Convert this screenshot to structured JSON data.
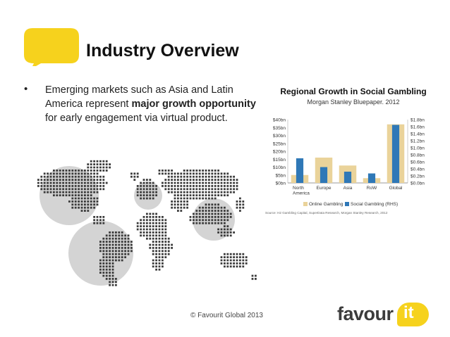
{
  "slide": {
    "title": "Industry Overview",
    "bullet_symbol": "•",
    "bullet_pre": "Emerging markets such as Asia and Latin America represent ",
    "bullet_bold": "major growth opportunity",
    "bullet_post": " for early engagement via virtual product.",
    "footer": "© Favourit Global 2013",
    "logo_word": "favour",
    "logo_it": "it"
  },
  "colors": {
    "accent_yellow": "#f6d21d",
    "online_gambling": "#ead39a",
    "social_gambling": "#2f78b7",
    "map_dots": "#3a3a3a",
    "map_circles": "#d4d4d4"
  },
  "chart_data": {
    "type": "bar",
    "title": "Regional Growth in Social Gambling",
    "subtitle": "Morgan Stanley Bluepaper. 2012",
    "categories": [
      "North America",
      "Europe",
      "Asia",
      "RoW",
      "Global"
    ],
    "category_labels": [
      [
        "North",
        "America"
      ],
      [
        "Europe"
      ],
      [
        "Asia"
      ],
      [
        "RoW"
      ],
      [
        "Global"
      ]
    ],
    "series": [
      {
        "name": "Online Gambling",
        "axis": "left",
        "values": [
          5,
          16,
          11,
          3,
          37
        ]
      },
      {
        "name": "Social Gambling (RHS)",
        "axis": "right",
        "values": [
          0.7,
          0.45,
          0.32,
          0.27,
          1.65
        ]
      }
    ],
    "ylim_left": [
      0,
      40
    ],
    "ylim_right": [
      0,
      1.8
    ],
    "yticks_left": [
      "$0bn",
      "$5bn",
      "$10bn",
      "$15bn",
      "$20bn",
      "$25bn",
      "$30bn",
      "$35bn",
      "$40bn"
    ],
    "yticks_right": [
      "$0.0bn",
      "$0.2bn",
      "$0.4bn",
      "$0.6bn",
      "$0.8bn",
      "$1.0bn",
      "$1.2bn",
      "$1.4bn",
      "$1.6bn",
      "$1.8bn"
    ],
    "source": "Source: H2 Gambling Capital, SuperData Research, Morgan Stanley Research, 2012",
    "legend_position": "bottom",
    "grid": false
  }
}
